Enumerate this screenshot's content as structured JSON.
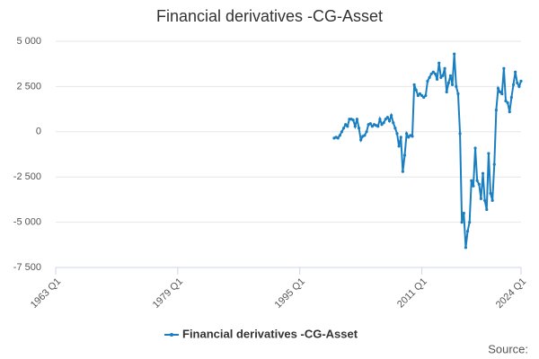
{
  "chart_data": {
    "type": "line",
    "title": "Financial derivatives -CG-Asset",
    "source": "Source:",
    "x": [
      "1999 Q3",
      "1999 Q4",
      "2000 Q1",
      "2000 Q2",
      "2000 Q3",
      "2000 Q4",
      "2001 Q1",
      "2001 Q2",
      "2001 Q3",
      "2001 Q4",
      "2002 Q1",
      "2002 Q2",
      "2002 Q3",
      "2002 Q4",
      "2003 Q1",
      "2003 Q2",
      "2003 Q3",
      "2003 Q4",
      "2004 Q1",
      "2004 Q2",
      "2004 Q3",
      "2004 Q4",
      "2005 Q1",
      "2005 Q2",
      "2005 Q3",
      "2005 Q4",
      "2006 Q1",
      "2006 Q2",
      "2006 Q3",
      "2006 Q4",
      "2007 Q1",
      "2007 Q2",
      "2007 Q3",
      "2007 Q4",
      "2008 Q1",
      "2008 Q2",
      "2008 Q3",
      "2008 Q4",
      "2009 Q1",
      "2009 Q2",
      "2009 Q3",
      "2009 Q4",
      "2010 Q1",
      "2010 Q2",
      "2010 Q3",
      "2010 Q4",
      "2011 Q1",
      "2011 Q2",
      "2011 Q3",
      "2011 Q4",
      "2012 Q1",
      "2012 Q2",
      "2012 Q3",
      "2012 Q4",
      "2013 Q1",
      "2013 Q2",
      "2013 Q3",
      "2013 Q4",
      "2014 Q1",
      "2014 Q2",
      "2014 Q3",
      "2014 Q4",
      "2015 Q1",
      "2015 Q2",
      "2015 Q3",
      "2015 Q4",
      "2016 Q1",
      "2016 Q2",
      "2016 Q3",
      "2016 Q4",
      "2017 Q1",
      "2017 Q2",
      "2017 Q3",
      "2017 Q4",
      "2018 Q1",
      "2018 Q2",
      "2018 Q3",
      "2018 Q4",
      "2019 Q1",
      "2019 Q2",
      "2019 Q3",
      "2019 Q4",
      "2020 Q1",
      "2020 Q2",
      "2020 Q3",
      "2020 Q4",
      "2021 Q1",
      "2021 Q2",
      "2021 Q3",
      "2021 Q4",
      "2022 Q1",
      "2022 Q2",
      "2022 Q3",
      "2022 Q4",
      "2023 Q1",
      "2023 Q2",
      "2023 Q3",
      "2023 Q4",
      "2024 Q1"
    ],
    "series": [
      {
        "name": "Financial derivatives -CG-Asset",
        "color": "#1a7fc1",
        "values": [
          -350,
          -300,
          -350,
          -200,
          0,
          200,
          400,
          300,
          700,
          700,
          650,
          300,
          700,
          200,
          -450,
          -250,
          -200,
          0,
          400,
          450,
          300,
          400,
          350,
          300,
          700,
          400,
          500,
          700,
          800,
          600,
          900,
          500,
          200,
          -100,
          -800,
          -300,
          -2200,
          -1300,
          -100,
          -300,
          -200,
          -250,
          2600,
          2300,
          2000,
          2100,
          2000,
          1900,
          2000,
          2800,
          3000,
          3200,
          3300,
          3200,
          2900,
          3800,
          3000,
          3100,
          3500,
          2200,
          2700,
          3100,
          2600,
          4300,
          2500,
          2100,
          -100,
          -5000,
          -4500,
          -6400,
          -5500,
          -5000,
          -2700,
          -3000,
          -900,
          -2700,
          -2900,
          -3700,
          -2300,
          -3800,
          -4300,
          -1200,
          -3400,
          -3800,
          -1800,
          1200,
          2400,
          2200,
          2100,
          3500,
          1700,
          1600,
          1100,
          1900,
          2600,
          3300,
          2700,
          2500,
          2800
        ]
      }
    ],
    "xlim": [
      "1963 Q1",
      "2024 Q1"
    ],
    "xticks": [
      "1963 Q1",
      "1979 Q1",
      "1995 Q1",
      "2011 Q1",
      "2024 Q1"
    ],
    "ylim": [
      -7500,
      5000
    ],
    "yticks": [
      {
        "value": 5000,
        "label": "5 000"
      },
      {
        "value": 2500,
        "label": "2 500"
      },
      0,
      {
        "value": -2500,
        "label": "-2 500"
      },
      {
        "value": -5000,
        "label": "-5 000"
      },
      {
        "value": -7500,
        "label": "-7 500"
      }
    ],
    "grid": true
  }
}
